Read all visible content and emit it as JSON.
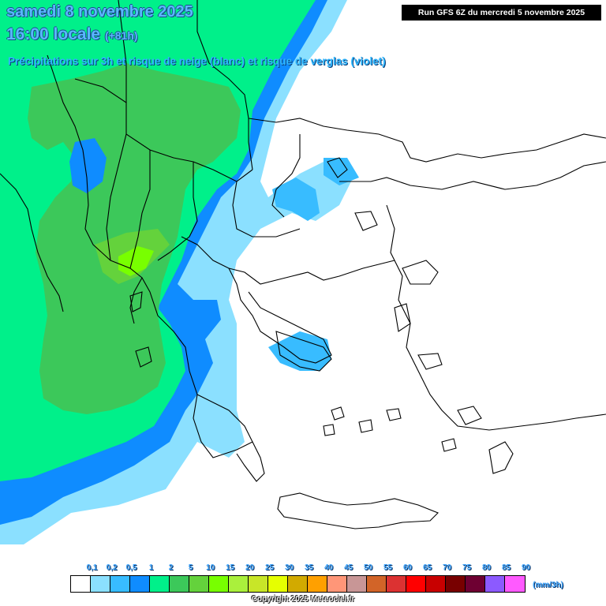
{
  "header": {
    "date_line": "samedi 8 novembre 2025",
    "time_line": "16:00 locale",
    "lead_time": "(+81h)",
    "subtitle": "Précipitations sur 3h et risque de neige (blanc) et risque de verglas (violet)",
    "run_info": "Run GFS 6Z du mercredi 5 novembre 2025"
  },
  "legend": {
    "labels": [
      "0,1",
      "0,2",
      "0,5",
      "1",
      "2",
      "5",
      "10",
      "15",
      "20",
      "25",
      "30",
      "35",
      "40",
      "45",
      "50",
      "55",
      "60",
      "65",
      "70",
      "75",
      "80",
      "85",
      "90"
    ],
    "colors": [
      "#ffffff",
      "#8be0ff",
      "#38bcff",
      "#0f8cff",
      "#00f08a",
      "#3cc85a",
      "#64d23c",
      "#78ff00",
      "#aaf03c",
      "#c8e628",
      "#e6ff00",
      "#d2aa00",
      "#ffa000",
      "#ff9678",
      "#c89696",
      "#d26428",
      "#dc3232",
      "#ff0000",
      "#c80000",
      "#780000",
      "#6e0032",
      "#8c5aff",
      "#ff5aff"
    ],
    "unit": "(mm/3h)"
  },
  "precip_colors": {
    "light": "#8be0ff",
    "blue": "#0f8cff",
    "sky": "#38bcff",
    "mint": "#00f08a",
    "green": "#3cc85a",
    "lime": "#64d23c",
    "bright": "#78ff00"
  },
  "copyright": "Copyright 2025 Meteociel.fr"
}
